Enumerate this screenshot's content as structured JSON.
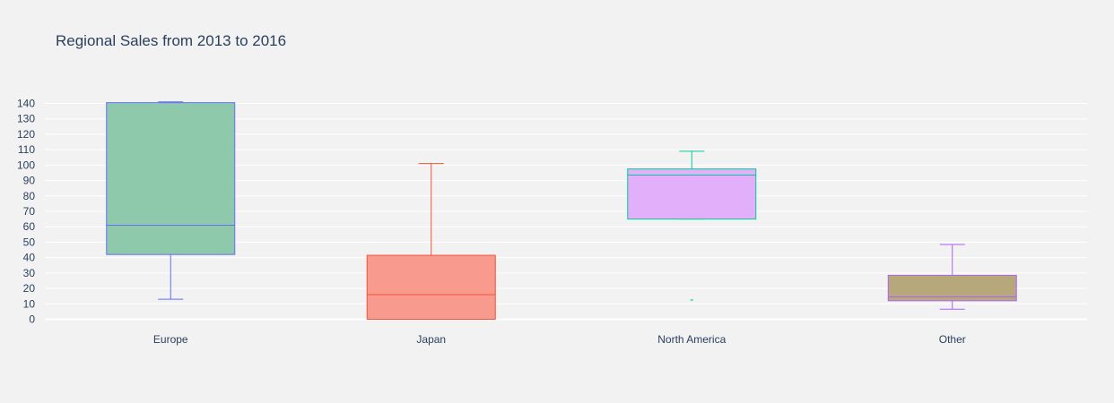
{
  "chart_data": {
    "type": "box",
    "title": "Regional Sales from 2013 to 2016",
    "xlabel": "",
    "ylabel": "",
    "ylim": [
      -3,
      146
    ],
    "yticks": [
      0,
      10,
      20,
      30,
      40,
      50,
      60,
      70,
      80,
      90,
      100,
      110,
      120,
      130,
      140
    ],
    "grid": true,
    "categories": [
      "Europe",
      "Japan",
      "North America",
      "Other"
    ],
    "series": [
      {
        "category": "Europe",
        "min": 13,
        "q1": 42,
        "median": 61,
        "q3": 140.5,
        "max": 141,
        "outliers": [],
        "fill": "#8fc9ac",
        "stroke": "#636efa"
      },
      {
        "category": "Japan",
        "min": 0,
        "q1": 0,
        "median": 16,
        "q3": 41.5,
        "max": 101,
        "outliers": [],
        "fill": "#f99a8e",
        "stroke": "#ef553b"
      },
      {
        "category": "North America",
        "min": 65,
        "q1": 65,
        "median": 93.5,
        "q3": 97.5,
        "max": 109,
        "outliers": [
          12.5
        ],
        "fill": "#e2b0fb",
        "stroke": "#00cc96"
      },
      {
        "category": "Other",
        "min": 6.5,
        "q1": 12,
        "median": 14.5,
        "q3": 28.5,
        "max": 48.5,
        "outliers": [],
        "fill": "#b7a87c",
        "stroke": "#ab63fa"
      }
    ]
  }
}
